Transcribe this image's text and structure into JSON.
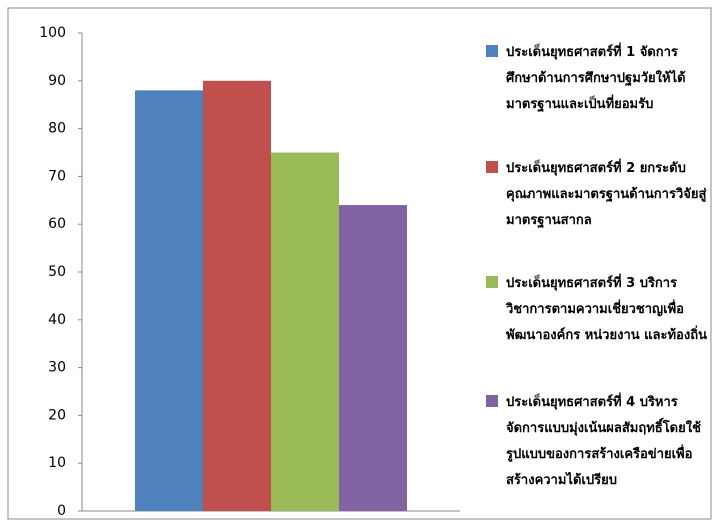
{
  "chart_data": {
    "type": "bar",
    "categories": [
      null
    ],
    "series": [
      {
        "name": "ประเด็นยุทธศาสตร์ที่ 1 จัดการศึกษาด้านการศึกษาปฐมวัยให้ได้มาตรฐานและเป็นที่ยอมรับ",
        "color": "#4f81bd",
        "values": [
          88
        ]
      },
      {
        "name": "ประเด็นยุทธศาสตร์ที่ 2 ยกระดับคุณภาพและมาตรฐานด้านการวิจัยสู่มาตรฐานสากล",
        "color": "#c0504d",
        "values": [
          90
        ]
      },
      {
        "name": "ประเด็นยุทธศาสตร์ที่ 3 บริการวิชาการตามความเชี่ยวชาญเพื่อพัฒนาองค์กร หน่วยงาน และท้องถิ่น",
        "color": "#9bbb59",
        "values": [
          75
        ]
      },
      {
        "name": "ประเด็นยุทธศาสตร์ที่ 4 บริหารจัดการแบบมุ่งเน้นผลสัมฤทธิ์โดยใช้รูปแบบของการสร้างเครือข่ายเพื่อสร้างความได้เปรียบ",
        "color": "#8064a2",
        "values": [
          64
        ]
      }
    ],
    "ylim": [
      0,
      100
    ],
    "yticks": [
      0,
      10,
      20,
      30,
      40,
      50,
      60,
      70,
      80,
      90,
      100
    ],
    "grid": false,
    "legend": "right"
  }
}
